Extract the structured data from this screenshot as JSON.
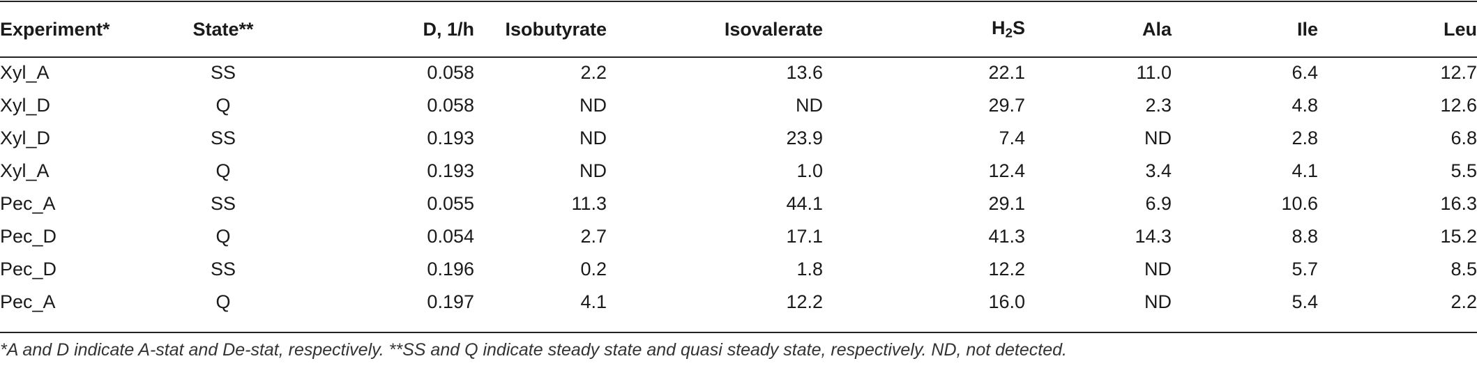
{
  "headers": {
    "experiment": "Experiment*",
    "state": "State**",
    "d": "D, 1/h",
    "isobutyrate": "Isobutyrate",
    "isovalerate": "Isovalerate",
    "h2s_main": "H",
    "h2s_sub": "2",
    "h2s_tail": "S",
    "ala": "Ala",
    "ile": "Ile",
    "leu": "Leu"
  },
  "rows": [
    {
      "experiment": "Xyl_A",
      "state": "SS",
      "d": "0.058",
      "isobutyrate": "2.2",
      "isovalerate": "13.6",
      "h2s": "22.1",
      "ala": "11.0",
      "ile": "6.4",
      "leu": "12.7"
    },
    {
      "experiment": "Xyl_D",
      "state": "Q",
      "d": "0.058",
      "isobutyrate": "ND",
      "isovalerate": "ND",
      "h2s": "29.7",
      "ala": "2.3",
      "ile": "4.8",
      "leu": "12.6"
    },
    {
      "experiment": "Xyl_D",
      "state": "SS",
      "d": "0.193",
      "isobutyrate": "ND",
      "isovalerate": "23.9",
      "h2s": "7.4",
      "ala": "ND",
      "ile": "2.8",
      "leu": "6.8"
    },
    {
      "experiment": "Xyl_A",
      "state": "Q",
      "d": "0.193",
      "isobutyrate": "ND",
      "isovalerate": "1.0",
      "h2s": "12.4",
      "ala": "3.4",
      "ile": "4.1",
      "leu": "5.5"
    },
    {
      "experiment": "Pec_A",
      "state": "SS",
      "d": "0.055",
      "isobutyrate": "11.3",
      "isovalerate": "44.1",
      "h2s": "29.1",
      "ala": "6.9",
      "ile": "10.6",
      "leu": "16.3"
    },
    {
      "experiment": "Pec_D",
      "state": "Q",
      "d": "0.054",
      "isobutyrate": "2.7",
      "isovalerate": "17.1",
      "h2s": "41.3",
      "ala": "14.3",
      "ile": "8.8",
      "leu": "15.2"
    },
    {
      "experiment": "Pec_D",
      "state": "SS",
      "d": "0.196",
      "isobutyrate": "0.2",
      "isovalerate": "1.8",
      "h2s": "12.2",
      "ala": "ND",
      "ile": "5.7",
      "leu": "8.5"
    },
    {
      "experiment": "Pec_A",
      "state": "Q",
      "d": "0.197",
      "isobutyrate": "4.1",
      "isovalerate": "12.2",
      "h2s": "16.0",
      "ala": "ND",
      "ile": "5.4",
      "leu": "2.2"
    }
  ],
  "footnote": "*A and D indicate A-stat and De-stat, respectively. **SS and Q indicate steady state and quasi steady state, respectively. ND, not detected."
}
